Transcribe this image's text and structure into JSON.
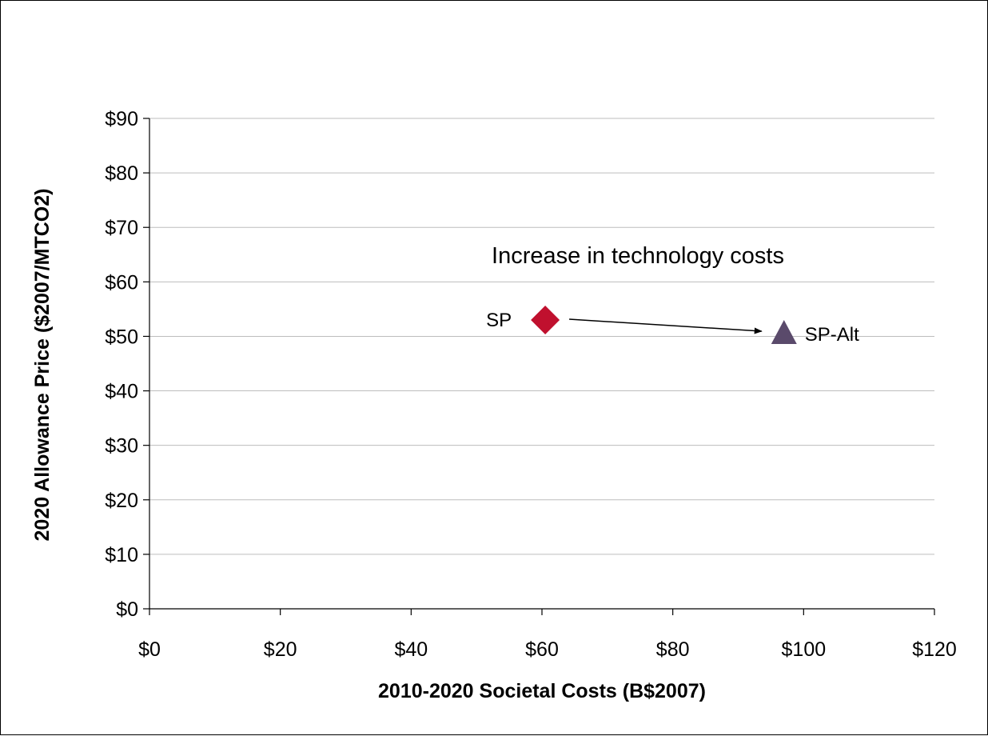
{
  "chart_data": {
    "type": "scatter",
    "title": "",
    "xlabel": "2010-2020 Societal Costs (B$2007)",
    "ylabel": "2020 Allowance Price ($2007/MTCO2)",
    "xlim": [
      0,
      120
    ],
    "ylim": [
      0,
      90
    ],
    "x_ticks": [
      0,
      20,
      40,
      60,
      80,
      100,
      120
    ],
    "x_tick_labels": [
      "$0",
      "$20",
      "$40",
      "$60",
      "$80",
      "$100",
      "$120"
    ],
    "y_ticks": [
      0,
      10,
      20,
      30,
      40,
      50,
      60,
      70,
      80,
      90
    ],
    "y_tick_labels": [
      "$0",
      "$10",
      "$20",
      "$30",
      "$40",
      "$50",
      "$60",
      "$70",
      "$80",
      "$90"
    ],
    "grid": "horizontal",
    "legend": "none",
    "points": [
      {
        "label": "SP",
        "x": 60.5,
        "y": 53,
        "marker": "diamond",
        "color": "#c0102e"
      },
      {
        "label": "SP-Alt",
        "x": 97,
        "y": 50.5,
        "marker": "triangle",
        "color": "#5a4a6b"
      }
    ],
    "annotations": [
      {
        "text": "Increase in technology costs"
      }
    ],
    "arrow": {
      "from": "SP",
      "to": "SP-Alt",
      "color": "#000000"
    }
  }
}
